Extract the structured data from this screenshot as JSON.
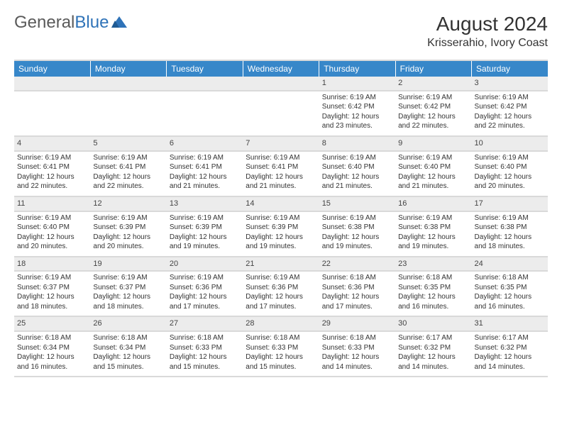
{
  "logo": {
    "part1": "General",
    "part2": "Blue"
  },
  "title": "August 2024",
  "subtitle": "Krisserahio, Ivory Coast",
  "colors": {
    "header_bg": "#3787c9",
    "header_text": "#ffffff",
    "daynum_bg": "#ececec",
    "divider": "#d9d9d9",
    "logo_gray": "#5a5a5a",
    "logo_blue": "#2f73b8"
  },
  "typography": {
    "title_fontsize": 28,
    "subtitle_fontsize": 16,
    "header_fontsize": 12,
    "cell_fontsize": 10
  },
  "weekdays": [
    "Sunday",
    "Monday",
    "Tuesday",
    "Wednesday",
    "Thursday",
    "Friday",
    "Saturday"
  ],
  "weeks": [
    [
      null,
      null,
      null,
      null,
      {
        "n": "1",
        "sr": "6:19 AM",
        "ss": "6:42 PM",
        "dl": "12 hours and 23 minutes."
      },
      {
        "n": "2",
        "sr": "6:19 AM",
        "ss": "6:42 PM",
        "dl": "12 hours and 22 minutes."
      },
      {
        "n": "3",
        "sr": "6:19 AM",
        "ss": "6:42 PM",
        "dl": "12 hours and 22 minutes."
      }
    ],
    [
      {
        "n": "4",
        "sr": "6:19 AM",
        "ss": "6:41 PM",
        "dl": "12 hours and 22 minutes."
      },
      {
        "n": "5",
        "sr": "6:19 AM",
        "ss": "6:41 PM",
        "dl": "12 hours and 22 minutes."
      },
      {
        "n": "6",
        "sr": "6:19 AM",
        "ss": "6:41 PM",
        "dl": "12 hours and 21 minutes."
      },
      {
        "n": "7",
        "sr": "6:19 AM",
        "ss": "6:41 PM",
        "dl": "12 hours and 21 minutes."
      },
      {
        "n": "8",
        "sr": "6:19 AM",
        "ss": "6:40 PM",
        "dl": "12 hours and 21 minutes."
      },
      {
        "n": "9",
        "sr": "6:19 AM",
        "ss": "6:40 PM",
        "dl": "12 hours and 21 minutes."
      },
      {
        "n": "10",
        "sr": "6:19 AM",
        "ss": "6:40 PM",
        "dl": "12 hours and 20 minutes."
      }
    ],
    [
      {
        "n": "11",
        "sr": "6:19 AM",
        "ss": "6:40 PM",
        "dl": "12 hours and 20 minutes."
      },
      {
        "n": "12",
        "sr": "6:19 AM",
        "ss": "6:39 PM",
        "dl": "12 hours and 20 minutes."
      },
      {
        "n": "13",
        "sr": "6:19 AM",
        "ss": "6:39 PM",
        "dl": "12 hours and 19 minutes."
      },
      {
        "n": "14",
        "sr": "6:19 AM",
        "ss": "6:39 PM",
        "dl": "12 hours and 19 minutes."
      },
      {
        "n": "15",
        "sr": "6:19 AM",
        "ss": "6:38 PM",
        "dl": "12 hours and 19 minutes."
      },
      {
        "n": "16",
        "sr": "6:19 AM",
        "ss": "6:38 PM",
        "dl": "12 hours and 19 minutes."
      },
      {
        "n": "17",
        "sr": "6:19 AM",
        "ss": "6:38 PM",
        "dl": "12 hours and 18 minutes."
      }
    ],
    [
      {
        "n": "18",
        "sr": "6:19 AM",
        "ss": "6:37 PM",
        "dl": "12 hours and 18 minutes."
      },
      {
        "n": "19",
        "sr": "6:19 AM",
        "ss": "6:37 PM",
        "dl": "12 hours and 18 minutes."
      },
      {
        "n": "20",
        "sr": "6:19 AM",
        "ss": "6:36 PM",
        "dl": "12 hours and 17 minutes."
      },
      {
        "n": "21",
        "sr": "6:19 AM",
        "ss": "6:36 PM",
        "dl": "12 hours and 17 minutes."
      },
      {
        "n": "22",
        "sr": "6:18 AM",
        "ss": "6:36 PM",
        "dl": "12 hours and 17 minutes."
      },
      {
        "n": "23",
        "sr": "6:18 AM",
        "ss": "6:35 PM",
        "dl": "12 hours and 16 minutes."
      },
      {
        "n": "24",
        "sr": "6:18 AM",
        "ss": "6:35 PM",
        "dl": "12 hours and 16 minutes."
      }
    ],
    [
      {
        "n": "25",
        "sr": "6:18 AM",
        "ss": "6:34 PM",
        "dl": "12 hours and 16 minutes."
      },
      {
        "n": "26",
        "sr": "6:18 AM",
        "ss": "6:34 PM",
        "dl": "12 hours and 15 minutes."
      },
      {
        "n": "27",
        "sr": "6:18 AM",
        "ss": "6:33 PM",
        "dl": "12 hours and 15 minutes."
      },
      {
        "n": "28",
        "sr": "6:18 AM",
        "ss": "6:33 PM",
        "dl": "12 hours and 15 minutes."
      },
      {
        "n": "29",
        "sr": "6:18 AM",
        "ss": "6:33 PM",
        "dl": "12 hours and 14 minutes."
      },
      {
        "n": "30",
        "sr": "6:17 AM",
        "ss": "6:32 PM",
        "dl": "12 hours and 14 minutes."
      },
      {
        "n": "31",
        "sr": "6:17 AM",
        "ss": "6:32 PM",
        "dl": "12 hours and 14 minutes."
      }
    ]
  ],
  "labels": {
    "sunrise": "Sunrise:",
    "sunset": "Sunset:",
    "daylight": "Daylight:"
  }
}
